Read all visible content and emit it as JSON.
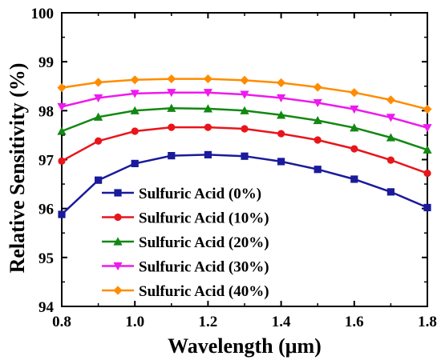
{
  "chart_data": {
    "type": "line",
    "title": "",
    "xlabel": "Wavelength (μm)",
    "ylabel": "Relative Sensitivity (%)",
    "xlim": [
      0.8,
      1.8
    ],
    "ylim": [
      94,
      100
    ],
    "x_ticks": [
      "0.8",
      "1.0",
      "1.2",
      "1.4",
      "1.6",
      "1.8"
    ],
    "y_ticks": [
      "94",
      "95",
      "96",
      "97",
      "98",
      "99",
      "100"
    ],
    "grid": false,
    "legend_position": "bottom-left",
    "x": [
      0.8,
      0.9,
      1.0,
      1.1,
      1.2,
      1.3,
      1.4,
      1.5,
      1.6,
      1.7,
      1.8
    ],
    "series": [
      {
        "name": "Sulfuric Acid (0%)",
        "color": "#1a1a9c",
        "marker": "square",
        "values": [
          95.88,
          96.58,
          96.92,
          97.08,
          97.1,
          97.07,
          96.96,
          96.8,
          96.6,
          96.34,
          96.02
        ]
      },
      {
        "name": "Sulfuric Acid (10%)",
        "color": "#e8151b",
        "marker": "circle",
        "values": [
          96.97,
          97.38,
          97.58,
          97.66,
          97.66,
          97.63,
          97.53,
          97.4,
          97.22,
          96.99,
          96.72
        ]
      },
      {
        "name": "Sulfuric Acid (20%)",
        "color": "#128812",
        "marker": "triangle-up",
        "values": [
          97.58,
          97.87,
          98.0,
          98.05,
          98.04,
          98.0,
          97.91,
          97.8,
          97.65,
          97.45,
          97.2
        ]
      },
      {
        "name": "Sulfuric Acid (30%)",
        "color": "#ee1aee",
        "marker": "triangle-down",
        "values": [
          98.08,
          98.26,
          98.35,
          98.37,
          98.37,
          98.33,
          98.26,
          98.16,
          98.03,
          97.86,
          97.65
        ]
      },
      {
        "name": "Sulfuric Acid (40%)",
        "color": "#ff8c00",
        "marker": "diamond",
        "values": [
          98.47,
          98.58,
          98.63,
          98.65,
          98.65,
          98.62,
          98.57,
          98.48,
          98.37,
          98.22,
          98.03
        ]
      }
    ]
  }
}
